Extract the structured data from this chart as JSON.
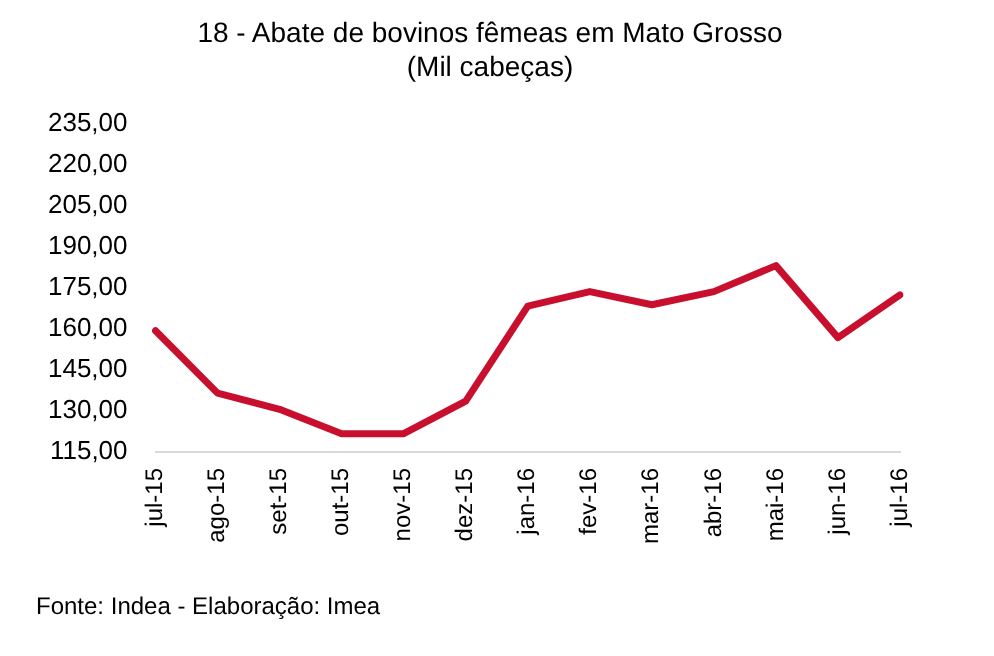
{
  "chart_data": {
    "type": "line",
    "title": "18 - Abate de bovinos fêmeas em Mato Grosso (Mil cabeças)",
    "categories": [
      "jul-15",
      "ago-15",
      "set-15",
      "out-15",
      "nov-15",
      "dez-15",
      "jan-16",
      "fev-16",
      "mar-16",
      "abr-16",
      "mai-16",
      "jun-16",
      "jul-16"
    ],
    "series": [
      {
        "color": "#c8102e",
        "values": [
          159.3,
          136.5,
          130.6,
          121.7,
          121.7,
          133.6,
          168.3,
          173.6,
          168.8,
          173.6,
          183.1,
          156.8,
          172.4
        ]
      }
    ],
    "ylim": [
      115,
      235
    ],
    "yticks": [
      {
        "value": 115,
        "label": "115,00"
      },
      {
        "value": 130,
        "label": "130,00"
      },
      {
        "value": 145,
        "label": "145,00"
      },
      {
        "value": 160,
        "label": "160,00"
      },
      {
        "value": 175,
        "label": "175,00"
      },
      {
        "value": 190,
        "label": "190,00"
      },
      {
        "value": 205,
        "label": "205,00"
      },
      {
        "value": 220,
        "label": "220,00"
      },
      {
        "value": 235,
        "label": "235,00"
      }
    ],
    "grid": false,
    "legend": false,
    "marker": "none",
    "line_style": "solid",
    "annotations": [
      "Fonte: Indea - Elaboração: Imea"
    ]
  }
}
